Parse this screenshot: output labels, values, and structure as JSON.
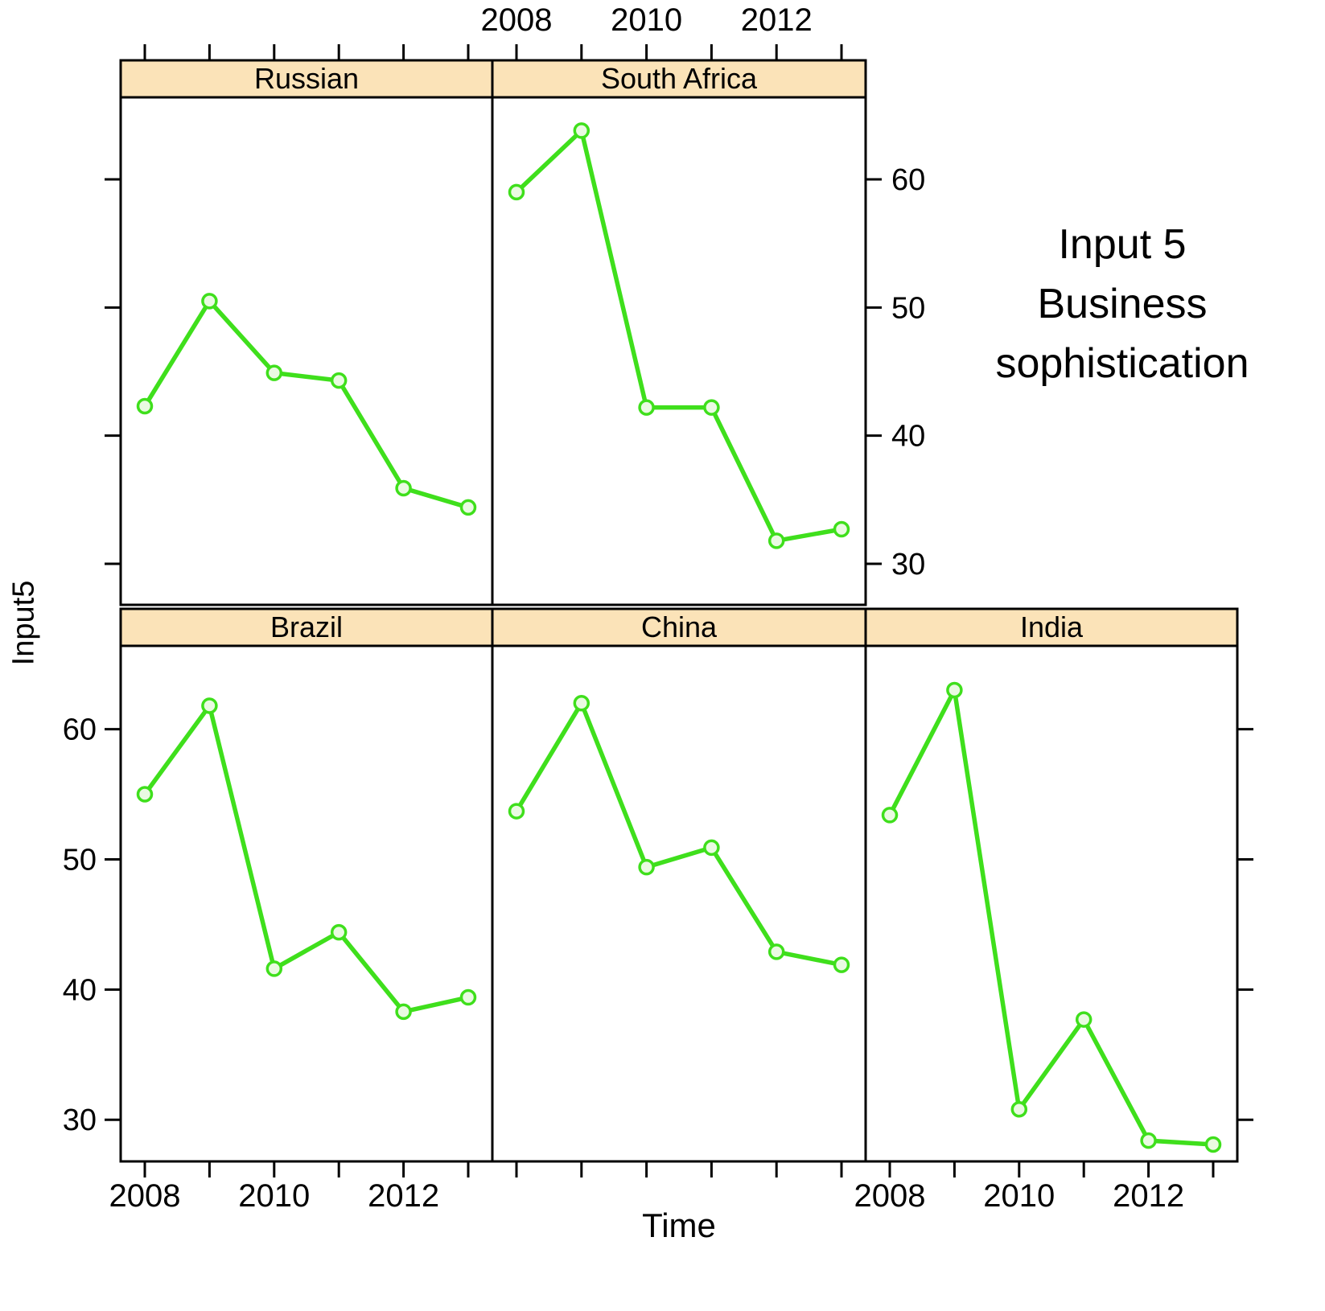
{
  "chart_data": {
    "type": "line",
    "title": "Input 5 Business sophistication",
    "title_lines": [
      "Input 5",
      "Business",
      "sophistication"
    ],
    "xlabel": "Time",
    "ylabel": "Input5",
    "x": [
      2008,
      2009,
      2010,
      2011,
      2012,
      2013
    ],
    "x_label_years": [
      2008,
      2010,
      2012
    ],
    "y_ticks": [
      30,
      40,
      50,
      60
    ],
    "ylim": [
      26.8,
      66.4
    ],
    "grid": false,
    "legend_position": "none",
    "panels": [
      {
        "name": "Russian",
        "row": 0,
        "col": 0,
        "values": [
          42.3,
          50.5,
          44.9,
          44.3,
          35.9,
          34.4
        ]
      },
      {
        "name": "South Africa",
        "row": 0,
        "col": 1,
        "values": [
          59.0,
          63.8,
          42.2,
          42.2,
          31.8,
          32.7
        ]
      },
      {
        "name": "Brazil",
        "row": 1,
        "col": 0,
        "values": [
          55.0,
          61.8,
          41.6,
          44.4,
          38.3,
          39.4
        ]
      },
      {
        "name": "China",
        "row": 1,
        "col": 1,
        "values": [
          53.7,
          62.0,
          49.4,
          50.9,
          42.9,
          41.9
        ]
      },
      {
        "name": "India",
        "row": 1,
        "col": 2,
        "values": [
          53.4,
          63.0,
          30.8,
          37.7,
          28.4,
          28.1
        ]
      }
    ],
    "colors": {
      "line": "#3fdf1c",
      "marker_fill": "#eafae2",
      "strip_bg": "#fbe3b8",
      "border": "#000000",
      "background": "#ffffff"
    }
  }
}
